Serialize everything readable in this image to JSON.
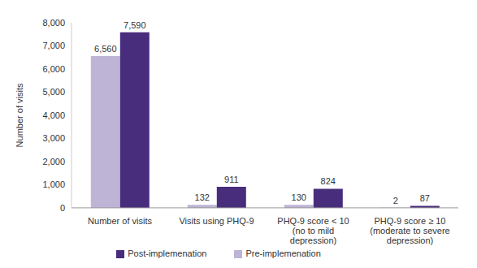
{
  "chart_data": {
    "type": "bar",
    "categories": [
      "Number of visits",
      "Visits using PHQ-9",
      "PHQ-9 score < 10 (no to mild depression)",
      "PHQ-9 score ≥ 10 (moderate to severe depression)"
    ],
    "series": [
      {
        "name": "Pre-implemenation",
        "color": "#bdb4d6",
        "values": [
          6560,
          132,
          130,
          2
        ],
        "value_labels": [
          "6,560",
          "132",
          "130",
          "2"
        ]
      },
      {
        "name": "Post-implemenation",
        "color": "#482d7c",
        "values": [
          7590,
          911,
          824,
          87
        ],
        "value_labels": [
          "7,590",
          "911",
          "824",
          "87"
        ]
      }
    ],
    "y_label": "Number of visits",
    "ylim": [
      0,
      8000
    ],
    "yticks": [
      0,
      {
        "value": 1000,
        "label": "1,000"
      },
      {
        "value": 2000,
        "label": "2,000"
      },
      {
        "value": 3000,
        "label": "3,000"
      },
      {
        "value": 4000,
        "label": "4,000"
      },
      {
        "value": 5000,
        "label": "5,000"
      },
      {
        "value": 6000,
        "label": "6,000"
      },
      {
        "value": 7000,
        "label": "7,000"
      },
      {
        "value": 8000,
        "label": "8,000"
      }
    ],
    "grid": false,
    "data_labels": true,
    "legend": "bottom"
  }
}
